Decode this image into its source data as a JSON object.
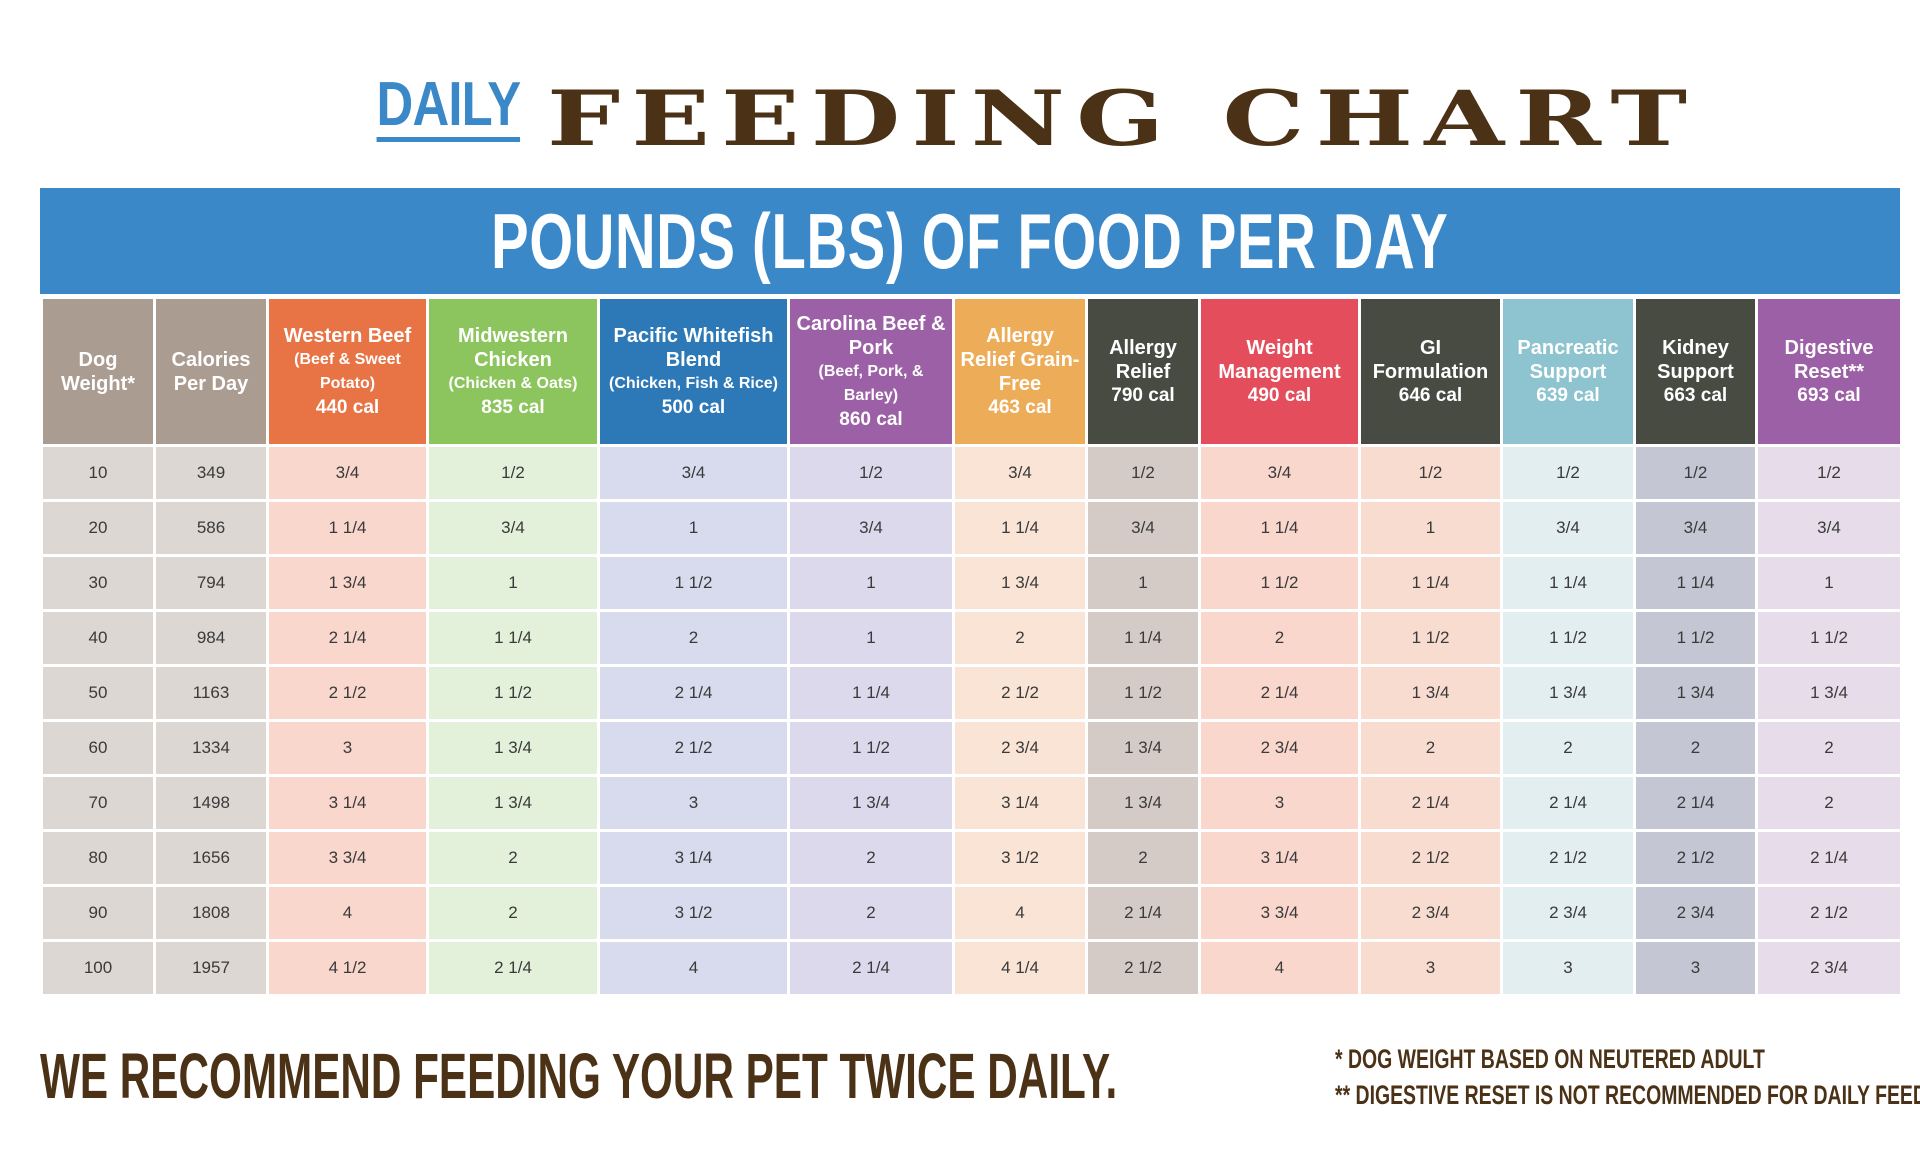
{
  "header": {
    "daily": "DAILY",
    "title": "FEEDING CHART"
  },
  "banner": "POUNDS (LBS) OF FOOD PER DAY",
  "columns": [
    {
      "name": "Dog Weight*",
      "sub": "",
      "cal": "",
      "color": "#ab9c92",
      "cell": "#dcd7d3"
    },
    {
      "name": "Calories Per Day",
      "sub": "",
      "cal": "",
      "color": "#ab9c92",
      "cell": "#dcd7d3"
    },
    {
      "name": "Western Beef",
      "sub": "(Beef & Sweet Potato)",
      "cal": "440 cal",
      "color": "#e87446",
      "cell": "#f9d7cd"
    },
    {
      "name": "Midwestern Chicken",
      "sub": "(Chicken & Oats)",
      "cal": "835 cal",
      "color": "#8cc55d",
      "cell": "#e3f1da"
    },
    {
      "name": "Pacific Whitefish Blend",
      "sub": "(Chicken, Fish & Rice)",
      "cal": "500 cal",
      "color": "#2d79b8",
      "cell": "#d8dbee"
    },
    {
      "name": "Carolina Beef & Pork",
      "sub": "(Beef, Pork, & Barley)",
      "cal": "860 cal",
      "color": "#9c60a6",
      "cell": "#dcd9ec"
    },
    {
      "name": "Allergy Relief Grain-Free",
      "sub": "",
      "cal": "463 cal",
      "color": "#edac57",
      "cell": "#f9e4d5"
    },
    {
      "name": "Allergy Relief",
      "sub": "",
      "cal": "790 cal",
      "color": "#474b42",
      "cell": "#d4cbc6"
    },
    {
      "name": "Weight Management",
      "sub": "",
      "cal": "490 cal",
      "color": "#e44d5c",
      "cell": "#f9d7cd"
    },
    {
      "name": "GI Formulation",
      "sub": "",
      "cal": "646 cal",
      "color": "#474b42",
      "cell": "#f9dcd0"
    },
    {
      "name": "Pancreatic Support",
      "sub": "",
      "cal": "639 cal",
      "color": "#8ec4cf",
      "cell": "#e3eef1"
    },
    {
      "name": "Kidney Support",
      "sub": "",
      "cal": "663 cal",
      "color": "#474b42",
      "cell": "#c4c6d4"
    },
    {
      "name": "Digestive Reset**",
      "sub": "",
      "cal": "693 cal",
      "color": "#9c60a6",
      "cell": "#e6dcea"
    }
  ],
  "rows": [
    [
      "10",
      "349",
      "3/4",
      "1/2",
      "3/4",
      "1/2",
      "3/4",
      "1/2",
      "3/4",
      "1/2",
      "1/2",
      "1/2",
      "1/2"
    ],
    [
      "20",
      "586",
      "1 1/4",
      "3/4",
      "1",
      "3/4",
      "1 1/4",
      "3/4",
      "1 1/4",
      "1",
      "3/4",
      "3/4",
      "3/4"
    ],
    [
      "30",
      "794",
      "1 3/4",
      "1",
      "1 1/2",
      "1",
      "1 3/4",
      "1",
      "1 1/2",
      "1 1/4",
      "1 1/4",
      "1 1/4",
      "1"
    ],
    [
      "40",
      "984",
      "2 1/4",
      "1 1/4",
      "2",
      "1",
      "2",
      "1 1/4",
      "2",
      "1 1/2",
      "1 1/2",
      "1 1/2",
      "1 1/2"
    ],
    [
      "50",
      "1163",
      "2 1/2",
      "1 1/2",
      "2 1/4",
      "1 1/4",
      "2 1/2",
      "1 1/2",
      "2 1/4",
      "1 3/4",
      "1 3/4",
      "1 3/4",
      "1 3/4"
    ],
    [
      "60",
      "1334",
      "3",
      "1 3/4",
      "2 1/2",
      "1 1/2",
      "2 3/4",
      "1 3/4",
      "2 3/4",
      "2",
      "2",
      "2",
      "2"
    ],
    [
      "70",
      "1498",
      "3 1/4",
      "1 3/4",
      "3",
      "1 3/4",
      "3 1/4",
      "1 3/4",
      "3",
      "2 1/4",
      "2 1/4",
      "2 1/4",
      "2"
    ],
    [
      "80",
      "1656",
      "3 3/4",
      "2",
      "3 1/4",
      "2",
      "3 1/2",
      "2",
      "3 1/4",
      "2 1/2",
      "2 1/2",
      "2 1/2",
      "2 1/4"
    ],
    [
      "90",
      "1808",
      "4",
      "2",
      "3 1/2",
      "2",
      "4",
      "2 1/4",
      "3 3/4",
      "2 3/4",
      "2 3/4",
      "2 3/4",
      "2 1/2"
    ],
    [
      "100",
      "1957",
      "4 1/2",
      "2 1/4",
      "4",
      "2 1/4",
      "4 1/4",
      "2 1/2",
      "4",
      "3",
      "3",
      "3",
      "2 3/4"
    ]
  ],
  "footer": "WE RECOMMEND FEEDING YOUR PET TWICE DAILY.",
  "notes": [
    "* DOG WEIGHT BASED ON NEUTERED ADULT",
    "** DIGESTIVE RESET IS NOT RECOMMENDED FOR DAILY FEEDING"
  ]
}
